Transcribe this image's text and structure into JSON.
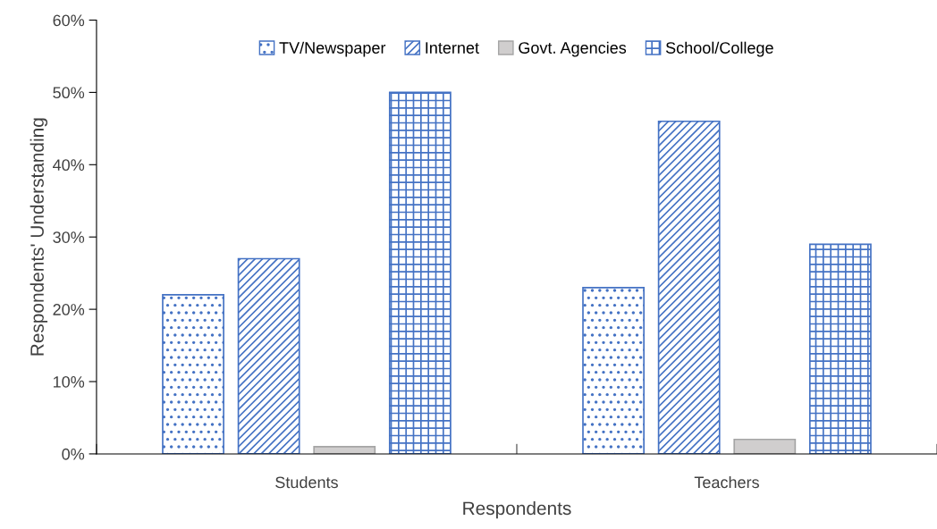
{
  "chart_data": {
    "type": "bar",
    "xlabel": "Respondents",
    "ylabel": "Respondents' Understanding",
    "categories": [
      "Students",
      "Teachers"
    ],
    "series": [
      {
        "name": "TV/Newspaper",
        "color": "#4472c4",
        "values": [
          22,
          23
        ]
      },
      {
        "name": "Internet",
        "color": "#4472c4",
        "values": [
          27,
          46
        ]
      },
      {
        "name": "Govt. Agencies",
        "color": "#d0cece",
        "values": [
          1,
          2
        ]
      },
      {
        "name": "School/College",
        "color": "#4472c4",
        "values": [
          50,
          29
        ]
      }
    ],
    "ylim": [
      0,
      60
    ],
    "yticks": [
      {
        "value": 0,
        "label": "0%"
      },
      {
        "value": 10,
        "label": "10%"
      },
      {
        "value": 20,
        "label": "20%"
      },
      {
        "value": 30,
        "label": "30%"
      },
      {
        "value": 40,
        "label": "40%"
      },
      {
        "value": 50,
        "label": "50%"
      },
      {
        "value": 60,
        "label": "60%"
      }
    ],
    "grid": false,
    "legend": "top"
  }
}
